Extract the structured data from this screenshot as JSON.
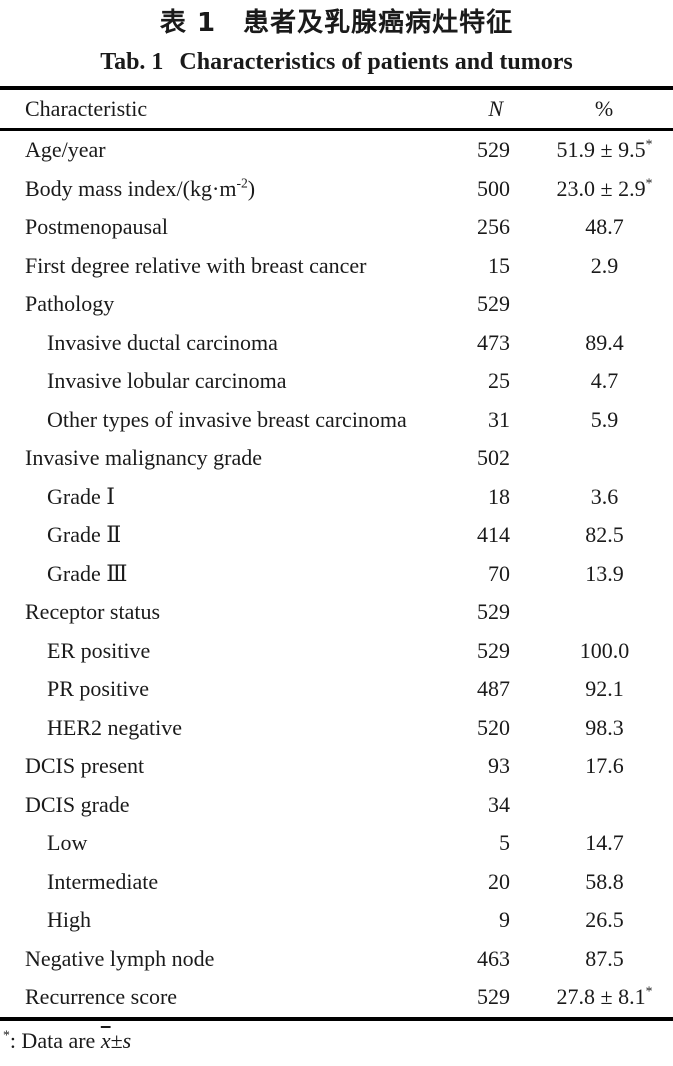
{
  "titles": {
    "chinese": "表 1　患者及乳腺癌病灶特征",
    "english_label": "Tab. 1",
    "english_text": "Characteristics of patients and tumors"
  },
  "table": {
    "headers": {
      "characteristic": "Characteristic",
      "n": "N",
      "percent": "%"
    },
    "rows": [
      {
        "indent": 0,
        "label": "Age/year",
        "n": "529",
        "pct": "51.9 ± 9.5",
        "pct_sup": "*"
      },
      {
        "indent": 0,
        "label": "Body mass index/(kg·m",
        "label_sup": "-2",
        "label_end": ")",
        "n": "500",
        "pct": "23.0 ± 2.9",
        "pct_sup": "*"
      },
      {
        "indent": 0,
        "label": "Postmenopausal",
        "n": "256",
        "pct": "48.7"
      },
      {
        "indent": 0,
        "label": "First degree relative with breast cancer",
        "n": "15",
        "pct": "2.9"
      },
      {
        "indent": 0,
        "label": "Pathology",
        "n": "529",
        "pct": ""
      },
      {
        "indent": 1,
        "label": "Invasive ductal carcinoma",
        "n": "473",
        "pct": "89.4"
      },
      {
        "indent": 1,
        "label": "Invasive lobular carcinoma",
        "n": "25",
        "pct": "4.7"
      },
      {
        "indent": 1,
        "label": "Other types of invasive breast carcinoma",
        "n": "31",
        "pct": "5.9"
      },
      {
        "indent": 0,
        "label": "Invasive malignancy grade",
        "n": "502",
        "pct": ""
      },
      {
        "indent": 1,
        "label": "Grade Ⅰ",
        "n": "18",
        "pct": "3.6"
      },
      {
        "indent": 1,
        "label": "Grade Ⅱ",
        "n": "414",
        "pct": "82.5"
      },
      {
        "indent": 1,
        "label": "Grade Ⅲ",
        "n": "70",
        "pct": "13.9"
      },
      {
        "indent": 0,
        "label": "Receptor status",
        "n": "529",
        "pct": ""
      },
      {
        "indent": 1,
        "label": "ER positive",
        "n": "529",
        "pct": "100.0"
      },
      {
        "indent": 1,
        "label": "PR positive",
        "n": "487",
        "pct": "92.1"
      },
      {
        "indent": 1,
        "label": "HER2 negative",
        "n": "520",
        "pct": "98.3"
      },
      {
        "indent": 0,
        "label": "DCIS present",
        "n": "93",
        "pct": "17.6"
      },
      {
        "indent": 0,
        "label": "DCIS grade",
        "n": "34",
        "pct": ""
      },
      {
        "indent": 1,
        "label": "Low",
        "n": "5",
        "pct": "14.7"
      },
      {
        "indent": 1,
        "label": "Intermediate",
        "n": "20",
        "pct": "58.8"
      },
      {
        "indent": 1,
        "label": "High",
        "n": "9",
        "pct": "26.5"
      },
      {
        "indent": 0,
        "label": "Negative lymph node",
        "n": "463",
        "pct": "87.5"
      },
      {
        "indent": 0,
        "label": "Recurrence score",
        "n": "529",
        "pct": "27.8 ± 8.1",
        "pct_sup": "*"
      }
    ]
  },
  "footnote": {
    "marker": "*",
    "text": ": Data are ",
    "xbar": "x",
    "pm": "±",
    "s": "s"
  }
}
